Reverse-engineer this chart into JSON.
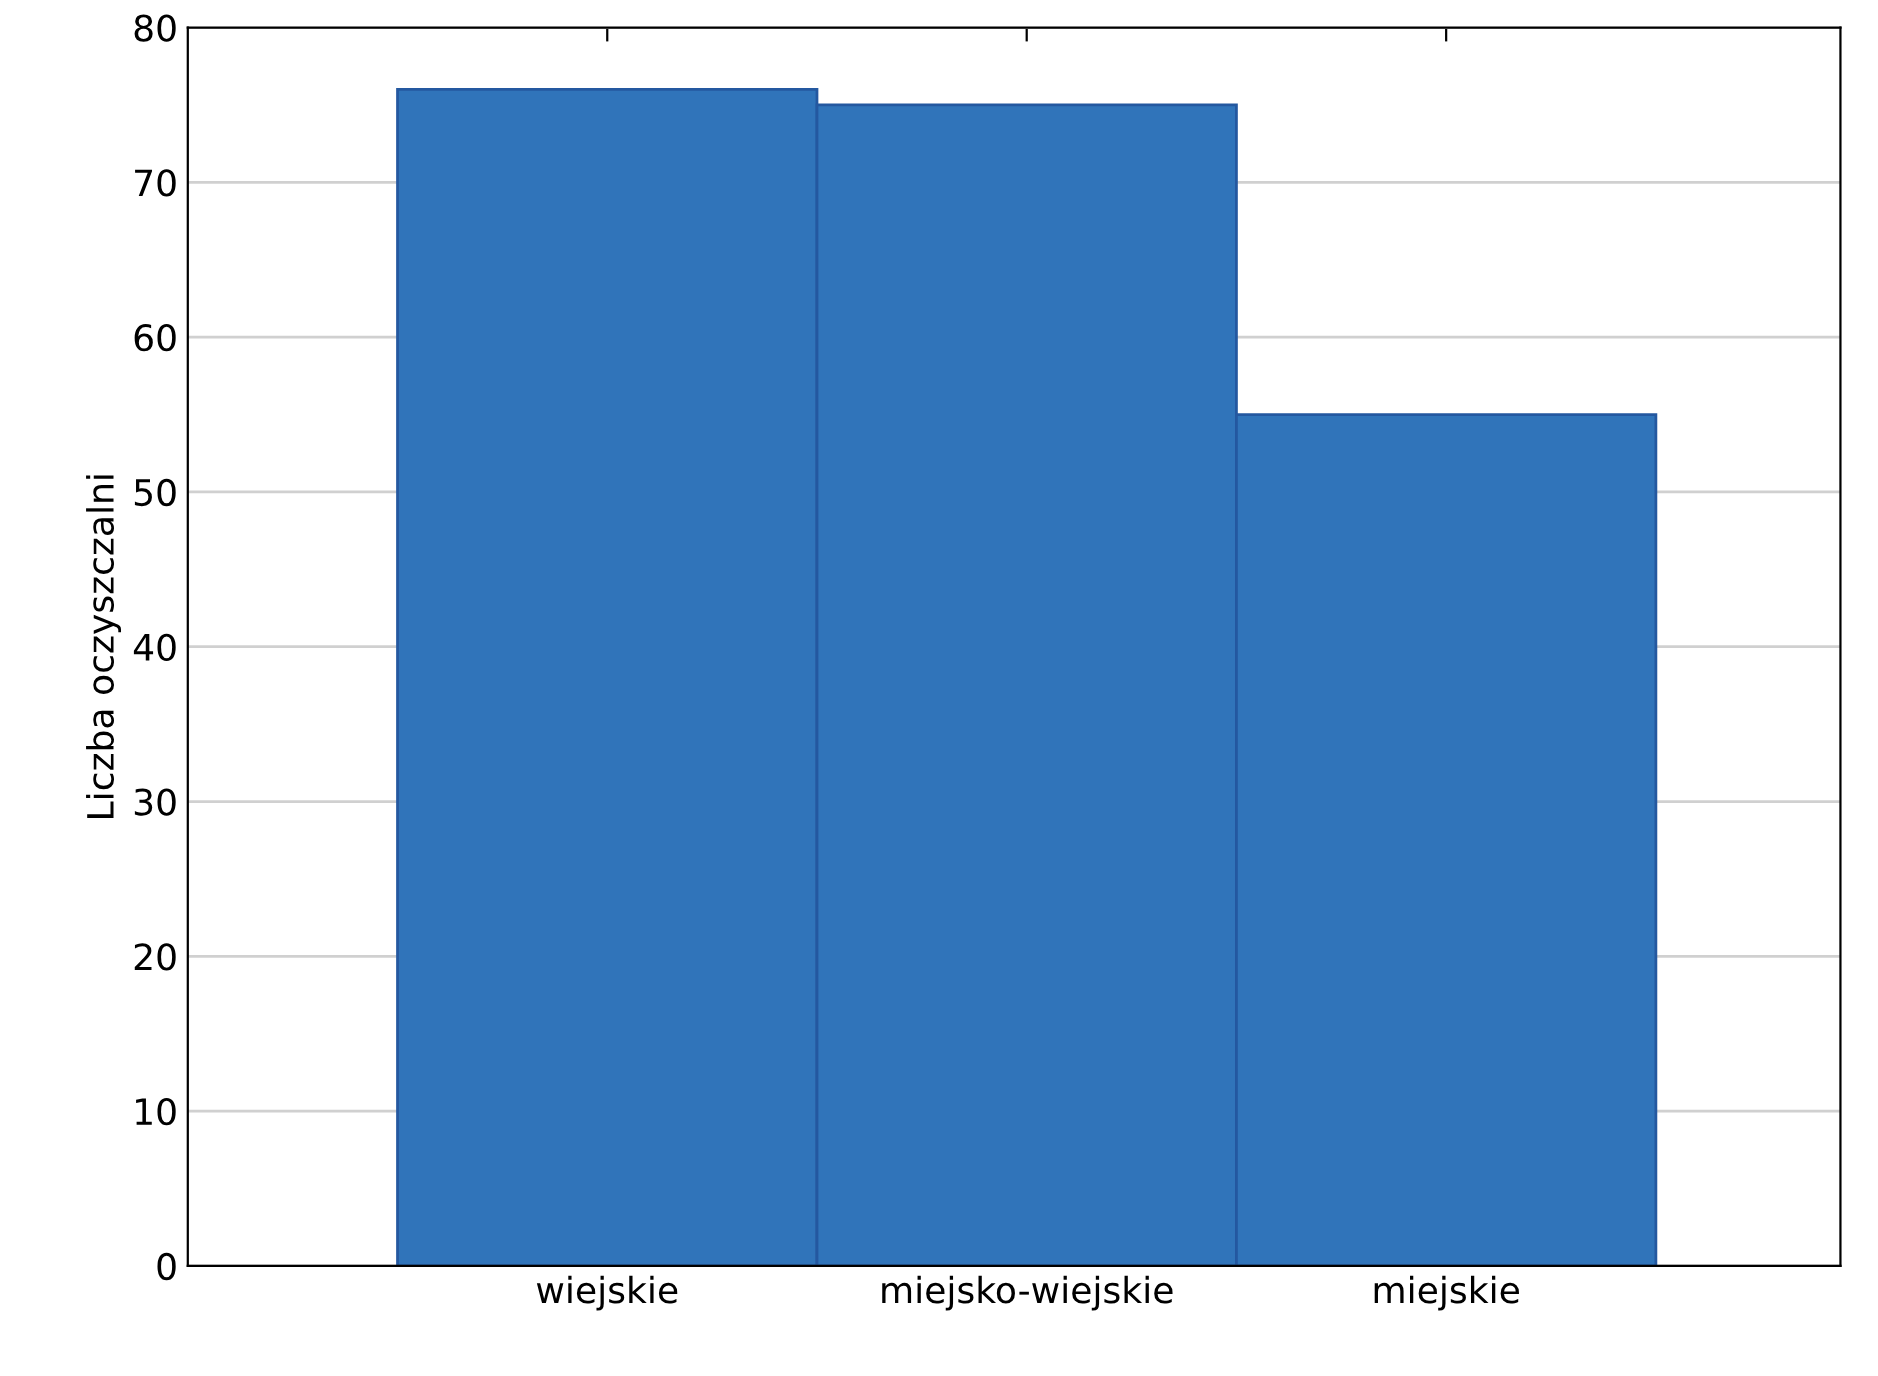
{
  "chart_data": {
    "type": "bar",
    "ylabel": "Liczba oczyszczalni",
    "categories": [
      "wiejskie",
      "miejsko-wiejskie",
      "miejskie"
    ],
    "values": [
      76,
      75,
      55
    ],
    "color": "#3074ba",
    "ylim": [
      0,
      80
    ],
    "yticks": [
      0,
      10,
      20,
      30,
      40,
      50,
      60,
      70,
      80
    ],
    "grid": "y"
  }
}
